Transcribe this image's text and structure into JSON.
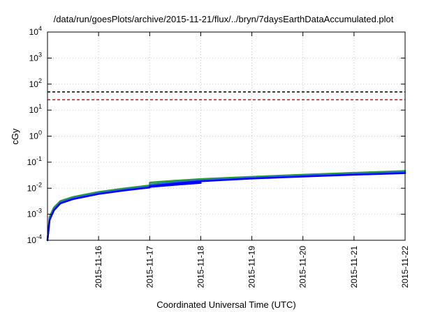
{
  "chart_data": {
    "type": "line",
    "title": "/data/run/goesPlots/archive/2015-11-21/flux/../bryn/7daysEarthDataAccumulated.plot",
    "xlabel": "Coordinated Universal Time (UTC)",
    "ylabel": "cGy",
    "x_range": [
      "2015-11-15",
      "2015-11-22"
    ],
    "x_ticks": [
      "2015-11-16",
      "2015-11-17",
      "2015-11-18",
      "2015-11-19",
      "2015-11-20",
      "2015-11-21",
      "2015-11-22"
    ],
    "y_scale": "log",
    "ylim": [
      0.0001,
      10000
    ],
    "y_ticks": [
      {
        "value": 0.0001,
        "base": "10",
        "exp": "-4"
      },
      {
        "value": 0.001,
        "base": "10",
        "exp": "-3"
      },
      {
        "value": 0.01,
        "base": "10",
        "exp": "-2"
      },
      {
        "value": 0.1,
        "base": "10",
        "exp": "-1"
      },
      {
        "value": 1,
        "base": "10",
        "exp": "0"
      },
      {
        "value": 10,
        "base": "10",
        "exp": "1"
      },
      {
        "value": 100,
        "base": "10",
        "exp": "2"
      },
      {
        "value": 1000,
        "base": "10",
        "exp": "3"
      },
      {
        "value": 10000,
        "base": "10",
        "exp": "4"
      }
    ],
    "grid": true,
    "thresholds": [
      {
        "value": 50,
        "color": "#000000",
        "style": "dashed"
      },
      {
        "value": 25,
        "color": "#ff0000",
        "style": "dashed"
      }
    ],
    "series": [
      {
        "color": "#2aa02a",
        "x": [
          "2015-11-15 00:00",
          "2015-11-15 01:00",
          "2015-11-15 03:00",
          "2015-11-15 06:00",
          "2015-11-15 12:00",
          "2015-11-16 00:00",
          "2015-11-16 12:00",
          "2015-11-17 00:00",
          "2015-11-17 00:05",
          "2015-11-17 12:00",
          "2015-11-18 00:00",
          "2015-11-19 00:00",
          "2015-11-20 00:00",
          "2015-11-21 00:00",
          "2015-11-22 00:00"
        ],
        "y": [
          0.0001,
          0.0008,
          0.0018,
          0.0032,
          0.0046,
          0.0072,
          0.0098,
          0.0128,
          0.0165,
          0.0195,
          0.0225,
          0.0275,
          0.033,
          0.039,
          0.046
        ]
      },
      {
        "color": "#1e6fd6",
        "x": [
          "2015-11-15 00:00",
          "2015-11-15 01:00",
          "2015-11-15 03:00",
          "2015-11-15 06:00",
          "2015-11-15 12:00",
          "2015-11-16 00:00",
          "2015-11-16 12:00",
          "2015-11-17 00:00",
          "2015-11-17 00:05",
          "2015-11-17 12:00",
          "2015-11-18 00:00",
          "2015-11-19 00:00",
          "2015-11-20 00:00",
          "2015-11-21 00:00",
          "2015-11-22 00:00"
        ],
        "y": [
          0.0001,
          0.0007,
          0.0016,
          0.0029,
          0.0042,
          0.0066,
          0.009,
          0.0116,
          0.0138,
          0.0172,
          0.0205,
          0.0255,
          0.031,
          0.036,
          0.042
        ]
      },
      {
        "color": "#0000ff",
        "x": [
          "2015-11-15 00:00",
          "2015-11-15 01:00",
          "2015-11-15 03:00",
          "2015-11-15 06:00",
          "2015-11-15 12:00",
          "2015-11-16 00:00",
          "2015-11-16 12:00",
          "2015-11-17 00:00",
          "2015-11-17 00:05",
          "2015-11-17 12:00",
          "2015-11-18 00:00",
          "2015-11-19 00:00",
          "2015-11-20 00:00",
          "2015-11-21 00:00",
          "2015-11-22 00:00"
        ],
        "y": [
          0.0001,
          0.0006,
          0.0014,
          0.0026,
          0.0038,
          0.006,
          0.0082,
          0.0106,
          0.012,
          0.0152,
          0.0185,
          0.0235,
          0.028,
          0.033,
          0.038
        ]
      },
      {
        "color": "#0000ff",
        "x": [
          "2015-11-17 00:05",
          "2015-11-17 12:00",
          "2015-11-18 00:00"
        ],
        "y": [
          0.0112,
          0.0135,
          0.016
        ]
      }
    ]
  }
}
